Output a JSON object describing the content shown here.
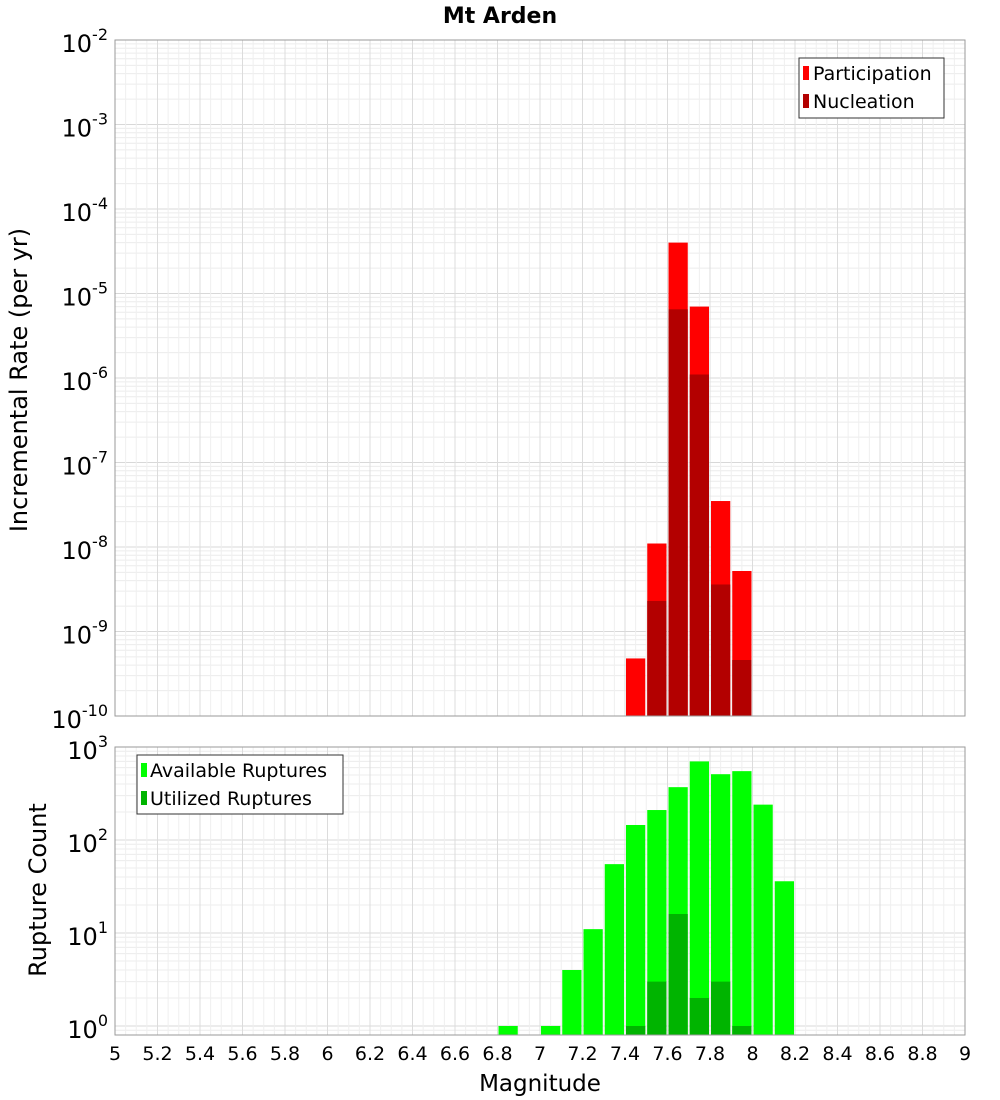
{
  "title": "Mt Arden",
  "xlabel": "Magnitude",
  "x_ticks": [
    "5",
    "5.2",
    "5.4",
    "5.6",
    "5.8",
    "6",
    "6.2",
    "6.4",
    "6.6",
    "6.8",
    "7",
    "7.2",
    "7.4",
    "7.6",
    "7.8",
    "8",
    "8.2",
    "8.4",
    "8.6",
    "8.8",
    "9"
  ],
  "chart_data": [
    {
      "type": "bar",
      "title": "Mt Arden",
      "ylabel": "Incremental Rate (per yr)",
      "xlabel": "Magnitude",
      "yscale": "log",
      "ylim": [
        1e-10,
        0.01
      ],
      "xlim": [
        5,
        9
      ],
      "bar_width": 0.1,
      "y_tick_exponents": [
        "-2",
        "-3",
        "-4",
        "-5",
        "-6",
        "-7",
        "-8",
        "-9",
        "-10"
      ],
      "legend_position": "top-right",
      "grid": true,
      "series": [
        {
          "name": "Participation",
          "color": "#ff0000",
          "x": [
            7.45,
            7.55,
            7.65,
            7.75,
            7.85,
            7.95
          ],
          "values": [
            4.8e-10,
            1.1e-08,
            4e-05,
            7e-06,
            3.5e-08,
            5.2e-09
          ]
        },
        {
          "name": "Nucleation",
          "color": "#b30000",
          "x": [
            7.55,
            7.65,
            7.75,
            7.85,
            7.95
          ],
          "values": [
            2.3e-09,
            6.5e-06,
            1.1e-06,
            3.6e-09,
            4.6e-10
          ]
        }
      ]
    },
    {
      "type": "bar",
      "ylabel": "Rupture Count",
      "xlabel": "Magnitude",
      "yscale": "log",
      "ylim": [
        0.8,
        1000
      ],
      "xlim": [
        5,
        9
      ],
      "bar_width": 0.1,
      "y_tick_exponents": [
        "3",
        "2",
        "1",
        "0"
      ],
      "legend_position": "top-left",
      "grid": true,
      "series": [
        {
          "name": "Available Ruptures",
          "color": "#00ff00",
          "x": [
            6.85,
            7.05,
            7.15,
            7.25,
            7.35,
            7.45,
            7.55,
            7.65,
            7.75,
            7.85,
            7.95,
            8.05,
            8.15
          ],
          "values": [
            1,
            1,
            4,
            11,
            55,
            145,
            210,
            370,
            700,
            510,
            550,
            240,
            36
          ]
        },
        {
          "name": "Utilized Ruptures",
          "color": "#00b400",
          "x": [
            7.45,
            7.55,
            7.65,
            7.75,
            7.85,
            7.95
          ],
          "values": [
            1,
            3,
            16,
            2,
            3,
            1
          ]
        }
      ]
    }
  ]
}
